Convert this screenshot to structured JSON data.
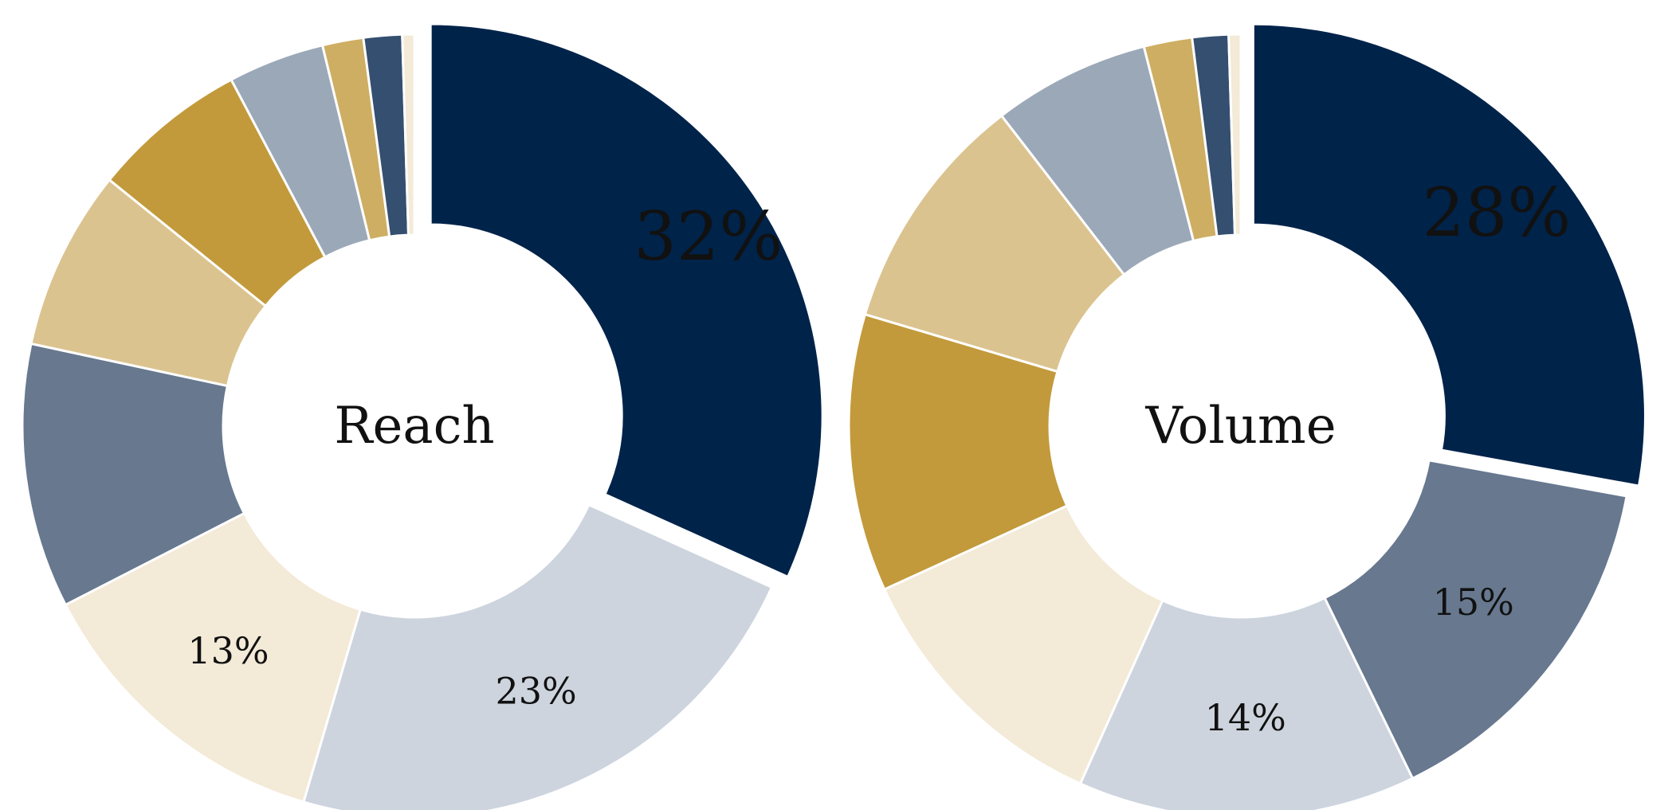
{
  "chart_data": [
    {
      "type": "pie",
      "center_label": "Reach",
      "slices": [
        {
          "value": 32,
          "label": "32%",
          "color": "#00234a",
          "exploded": true
        },
        {
          "value": 23,
          "label": "23%",
          "color": "#cdd4de"
        },
        {
          "value": 13,
          "label": "13%",
          "color": "#f3ead7"
        },
        {
          "value": 11,
          "label": "",
          "color": "#67788f"
        },
        {
          "value": 7.5,
          "label": "",
          "color": "#dbc38f"
        },
        {
          "value": 6.5,
          "label": "",
          "color": "#c29a3b"
        },
        {
          "value": 4,
          "label": "",
          "color": "#9ba8b8"
        },
        {
          "value": 1.7,
          "label": "",
          "color": "#ceae63"
        },
        {
          "value": 1.6,
          "label": "",
          "color": "#344f70"
        },
        {
          "value": 0.5,
          "label": "",
          "color": "#f3ead7"
        }
      ]
    },
    {
      "type": "pie",
      "center_label": "Volume",
      "slices": [
        {
          "value": 28,
          "label": "28%",
          "color": "#00234a",
          "exploded": true
        },
        {
          "value": 15,
          "label": "15%",
          "color": "#67788f"
        },
        {
          "value": 14,
          "label": "14%",
          "color": "#cdd4de"
        },
        {
          "value": 11.5,
          "label": "",
          "color": "#f3ead7"
        },
        {
          "value": 11.5,
          "label": "",
          "color": "#c29a3b"
        },
        {
          "value": 10,
          "label": "",
          "color": "#dbc38f"
        },
        {
          "value": 6.5,
          "label": "",
          "color": "#9ba8b8"
        },
        {
          "value": 2,
          "label": "",
          "color": "#ceae63"
        },
        {
          "value": 1.5,
          "label": "",
          "color": "#344f70"
        },
        {
          "value": 0.5,
          "label": "",
          "color": "#f3ead7"
        }
      ]
    }
  ]
}
